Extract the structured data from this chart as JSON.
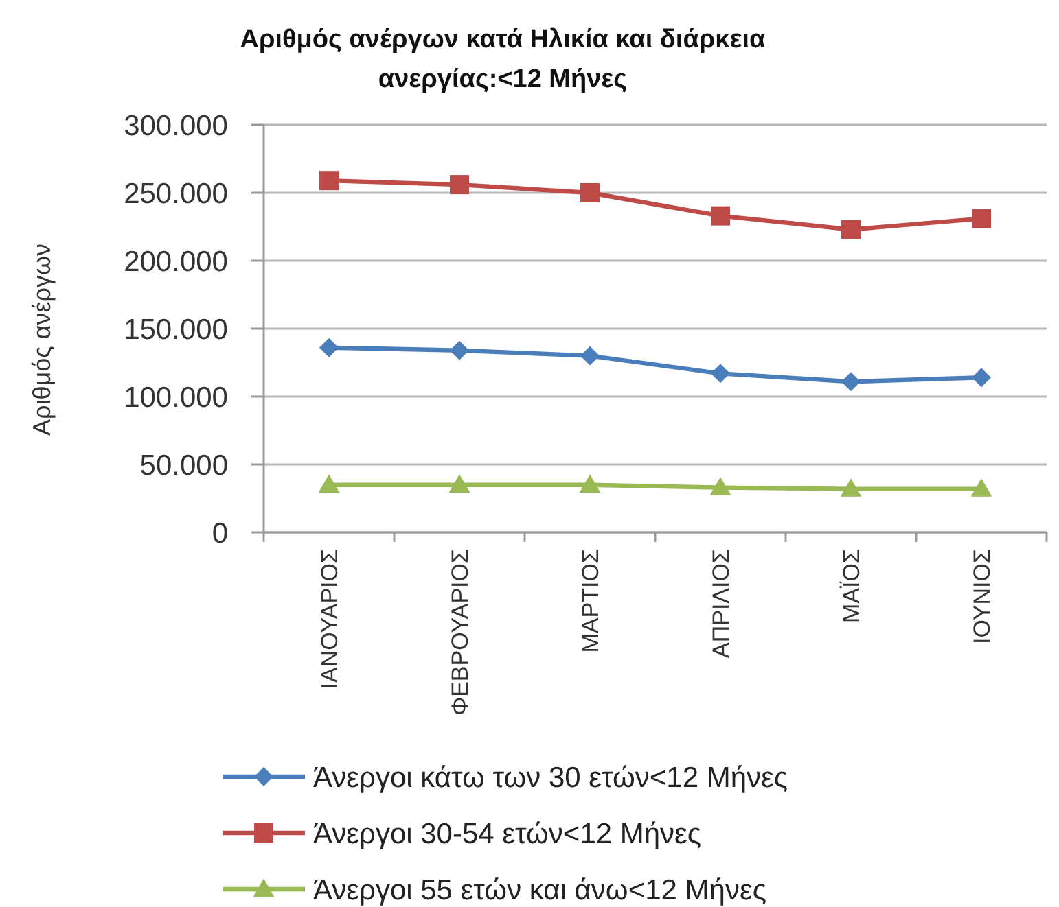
{
  "chart_data": {
    "type": "line",
    "title": "Αριθμός ανέργων κατά Ηλικία και διάρκεια ανεργίας:<12 Μήνες",
    "ylabel": "Αριθμός ανέργων",
    "categories": [
      "ΙΑΝΟΥΑΡΙΟΣ",
      "ΦΕΒΡΟΥΑΡΙΟΣ",
      "ΜΑΡΤΙΟΣ",
      "ΑΠΡΙΛΙΟΣ",
      "ΜΑΪΟΣ",
      "ΙΟΥΝΙΟΣ"
    ],
    "series": [
      {
        "name": "Άνεργοι κάτω των 30 ετών<12 Μήνες",
        "color": "#4a7ebb",
        "marker": "diamond",
        "values": [
          136000,
          134000,
          130000,
          117000,
          111000,
          114000
        ]
      },
      {
        "name": "Άνεργοι 30-54 ετών<12 Μήνες",
        "color": "#be4b48",
        "marker": "square",
        "values": [
          259000,
          256000,
          250000,
          233000,
          223000,
          231000
        ]
      },
      {
        "name": "Άνεργοι 55 ετών και άνω<12 Μήνες",
        "color": "#98b954",
        "marker": "triangle",
        "values": [
          35000,
          35000,
          35000,
          33000,
          32000,
          32000
        ]
      }
    ],
    "ylim": [
      0,
      300000
    ],
    "yticks": [
      0,
      {
        "value": 50000,
        "label": "50.000"
      },
      {
        "value": 100000,
        "label": "100.000"
      },
      {
        "value": 150000,
        "label": "150.000"
      },
      {
        "value": 200000,
        "label": "200.000"
      },
      {
        "value": 250000,
        "label": "250.000"
      },
      {
        "value": 300000,
        "label": "300.000"
      }
    ],
    "grid": "y",
    "legend": "bottom",
    "line_style": "solid"
  }
}
